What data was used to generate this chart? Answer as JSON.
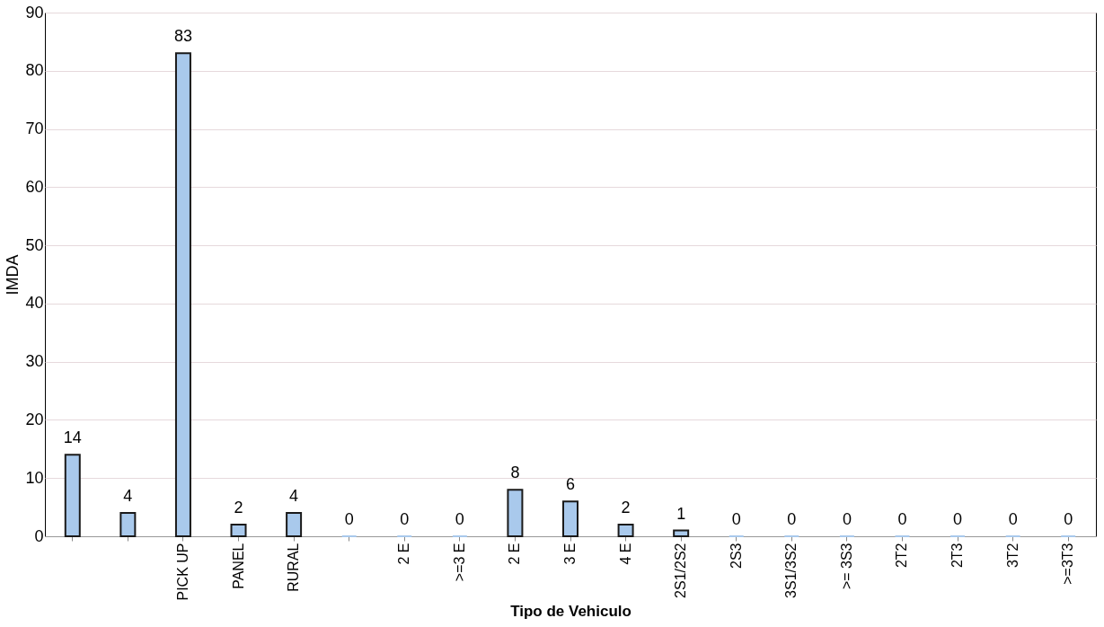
{
  "chart_data": {
    "type": "bar",
    "xlabel": "Tipo de Vehiculo",
    "ylabel": "IMDA",
    "categories": [
      null,
      null,
      "PICK UP",
      "PANEL",
      "RURAL",
      null,
      "2 E",
      ">=3 E",
      "2 E",
      "3 E",
      "4 E",
      "2S1/2S2",
      "2S3",
      "3S1/3S2",
      ">= 3S3",
      "2T2",
      "2T3",
      "3T2",
      ">=3T3"
    ],
    "values": [
      14,
      4,
      83,
      2,
      4,
      0,
      0,
      0,
      8,
      6,
      2,
      1,
      0,
      0,
      0,
      0,
      0,
      0,
      0
    ],
    "color": "#a9c9ec",
    "ylim": [
      0,
      90
    ],
    "yticks": [
      0,
      10,
      20,
      30,
      40,
      50,
      60,
      70,
      80,
      90
    ],
    "grid": "y",
    "data_labels": true
  }
}
